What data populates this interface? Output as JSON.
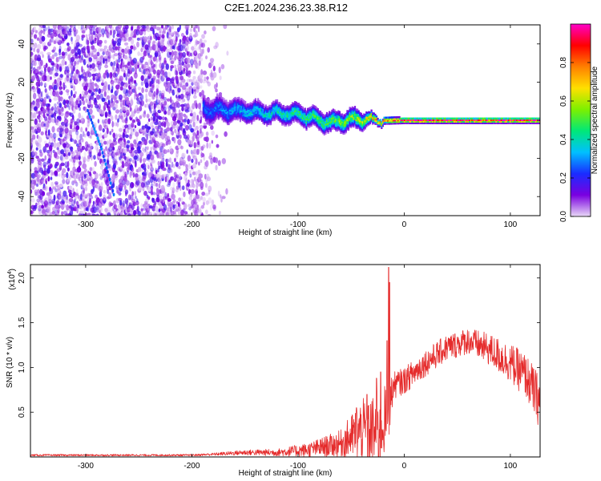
{
  "figure": {
    "title": "C2E1.2024.236.23.38.R12"
  },
  "chart_data": [
    {
      "type": "heatmap",
      "title": "C2E1.2024.236.23.38.R12",
      "xlabel": "Height of straight line (km)",
      "ylabel": "Frequency (Hz)",
      "xlim": [
        -352,
        128
      ],
      "ylim": [
        -50,
        50
      ],
      "x_ticks": [
        -300,
        -200,
        -100,
        0,
        100
      ],
      "y_ticks": [
        -40,
        -20,
        0,
        20,
        40
      ],
      "colorbar": {
        "label": "Normalized spectral amplitude",
        "range": [
          0,
          1
        ],
        "ticks": [
          0.0,
          0.2,
          0.4,
          0.6,
          0.8
        ],
        "colormap": [
          "#e8d8f6",
          "#7a00e0",
          "#1a2cff",
          "#00c0ff",
          "#00e878",
          "#7cf000",
          "#ffe000",
          "#ff8000",
          "#ff0000",
          "#ff00c8"
        ]
      },
      "features": {
        "noise_region_x": [
          -352,
          -190
        ],
        "signal_ridge": [
          {
            "x": -190,
            "freq": 6,
            "width": 7,
            "amplitude": 0.25
          },
          {
            "x": -160,
            "freq": 5,
            "width": 6,
            "amplitude": 0.32
          },
          {
            "x": -130,
            "freq": 4,
            "width": 5,
            "amplitude": 0.38
          },
          {
            "x": -100,
            "freq": 3,
            "width": 5,
            "amplitude": 0.45
          },
          {
            "x": -70,
            "freq": -1,
            "width": 5,
            "amplitude": 0.5
          },
          {
            "x": -45,
            "freq": 1,
            "width": 5,
            "amplitude": 0.55
          },
          {
            "x": -25,
            "freq": 0,
            "width": 2,
            "amplitude": 0.75
          },
          {
            "x": 0,
            "freq": 0,
            "width": 1.5,
            "amplitude": 0.9
          },
          {
            "x": 128,
            "freq": 0,
            "width": 1.5,
            "amplitude": 0.9
          }
        ],
        "streak": [
          {
            "x": -298,
            "freq": 5
          },
          {
            "x": -285,
            "freq": -15
          },
          {
            "x": -273,
            "freq": -40
          }
        ]
      }
    },
    {
      "type": "line",
      "xlabel": "Height of straight line (km)",
      "ylabel": "SNR (10 * v/v)",
      "y_multiplier": "(x10",
      "y_multiplier_exp": "4",
      "xlim": [
        -352,
        128
      ],
      "ylim": [
        0,
        2.15
      ],
      "x_ticks": [
        -300,
        -200,
        -100,
        0,
        100
      ],
      "y_ticks": [
        0.5,
        1.0,
        1.5,
        2.0
      ],
      "y_tick_labels": [
        "0.5",
        "1.0",
        "1.5",
        "2.0"
      ],
      "series": [
        {
          "color": "#e52b2b",
          "envelope": [
            {
              "x": -352,
              "base": 0.02,
              "noise": 0.01
            },
            {
              "x": -200,
              "base": 0.02,
              "noise": 0.01
            },
            {
              "x": -180,
              "base": 0.03,
              "noise": 0.015
            },
            {
              "x": -150,
              "base": 0.05,
              "noise": 0.03
            },
            {
              "x": -120,
              "base": 0.05,
              "noise": 0.04
            },
            {
              "x": -90,
              "base": 0.08,
              "noise": 0.08
            },
            {
              "x": -60,
              "base": 0.15,
              "noise": 0.15
            },
            {
              "x": -40,
              "base": 0.3,
              "noise": 0.35
            },
            {
              "x": -25,
              "base": 0.25,
              "noise": 0.45
            },
            {
              "x": -15,
              "base": 0.5,
              "noise": 0.35
            },
            {
              "x": -10,
              "base": 0.8,
              "noise": 0.15
            },
            {
              "x": 0,
              "base": 0.85,
              "noise": 0.15
            },
            {
              "x": 20,
              "base": 1.05,
              "noise": 0.15
            },
            {
              "x": 40,
              "base": 1.22,
              "noise": 0.15
            },
            {
              "x": 60,
              "base": 1.3,
              "noise": 0.15
            },
            {
              "x": 80,
              "base": 1.2,
              "noise": 0.18
            },
            {
              "x": 100,
              "base": 1.05,
              "noise": 0.22
            },
            {
              "x": 115,
              "base": 0.9,
              "noise": 0.25
            },
            {
              "x": 128,
              "base": 0.6,
              "noise": 0.3
            }
          ],
          "spikes": [
            {
              "x": -14.5,
              "value": 2.12
            },
            {
              "x": -13.8,
              "value": 1.95
            },
            {
              "x": -16,
              "value": 1.3
            },
            {
              "x": -22,
              "value": 0.95
            },
            {
              "x": -26,
              "value": 0.88
            },
            {
              "x": -35,
              "value": 0.7
            },
            {
              "x": -45,
              "value": 0.55
            }
          ]
        }
      ]
    }
  ]
}
